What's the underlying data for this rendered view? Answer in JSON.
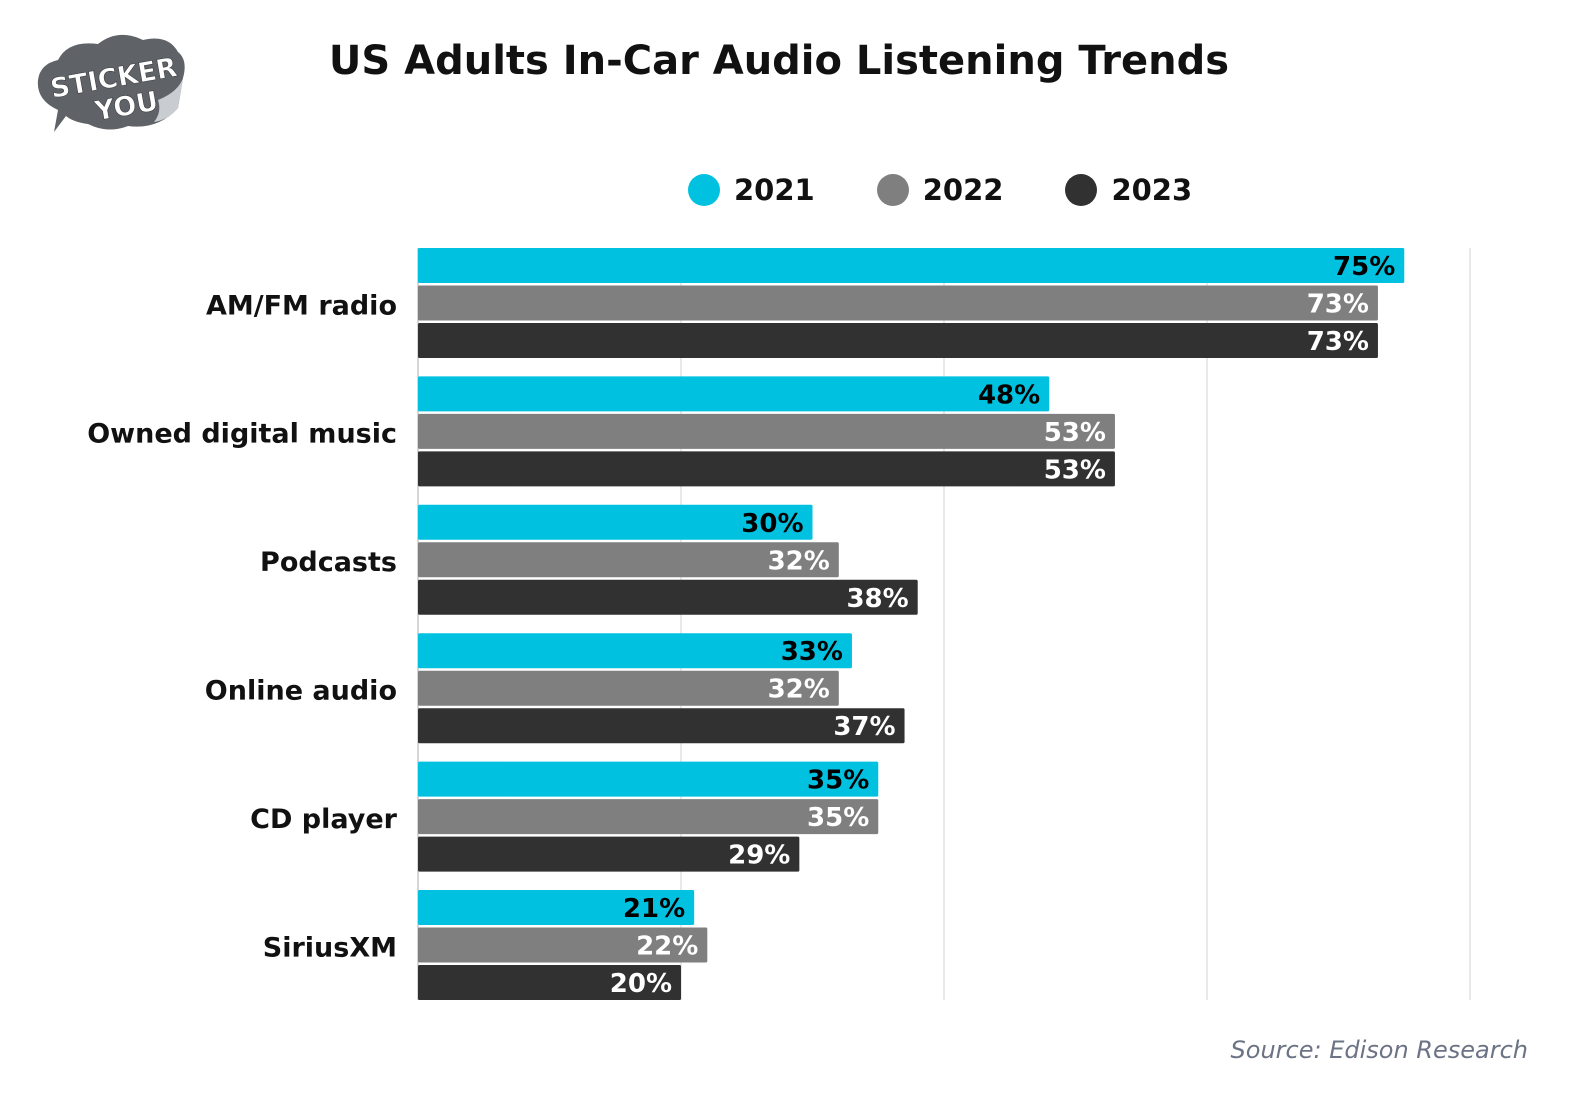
{
  "brand": {
    "logo_line1": "STICKER",
    "logo_line2": "YOU"
  },
  "chart_data": {
    "type": "bar",
    "orientation": "horizontal",
    "title": "US Adults In-Car Audio Listening Trends",
    "categories": [
      "AM/FM radio",
      "Owned digital music",
      "Podcasts",
      "Online audio",
      "CD player",
      "SiriusXM"
    ],
    "series": [
      {
        "name": "2021",
        "color": "#00c2e0",
        "label_color": "#000000",
        "values": [
          75,
          48,
          30,
          33,
          35,
          21
        ]
      },
      {
        "name": "2022",
        "color": "#7f7f7f",
        "label_color": "#ffffff",
        "values": [
          73,
          53,
          32,
          32,
          35,
          22
        ]
      },
      {
        "name": "2023",
        "color": "#313131",
        "label_color": "#ffffff",
        "values": [
          73,
          53,
          38,
          37,
          29,
          20
        ]
      }
    ],
    "value_suffix": "%",
    "xlim": [
      0,
      80
    ],
    "x_gridlines": [
      0,
      20,
      40,
      60,
      80
    ],
    "x_tick_labels_shown": false,
    "grid": true,
    "legend_position": "top-center",
    "xlabel": "",
    "ylabel": ""
  },
  "source": "Source: Edison Research"
}
